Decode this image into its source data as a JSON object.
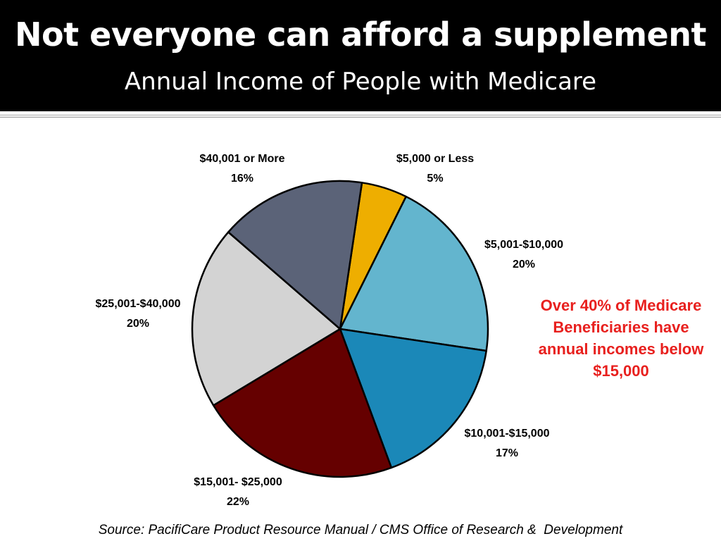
{
  "slide": {
    "title": "Not everyone can afford a supplement",
    "subtitle": "Annual Income of People with Medicare",
    "callout": "Over 40% of Medicare Beneficiaries have annual incomes below $15,000",
    "source": "Source: PacifiCare Product Resource Manual / CMS Office of Research &  Development"
  },
  "chart_data": {
    "type": "pie",
    "title": "Annual Income of People with Medicare",
    "slices": [
      {
        "label": "$5,000 or Less",
        "value": 5,
        "value_label": "5%",
        "color": "#EEAE00"
      },
      {
        "label": "$5,001-$10,000",
        "value": 20,
        "value_label": "20%",
        "color": "#63B5CE"
      },
      {
        "label": "$10,001-$15,000",
        "value": 17,
        "value_label": "17%",
        "color": "#1B88B8"
      },
      {
        "label": "$15,001- $25,000",
        "value": 22,
        "value_label": "22%",
        "color": "#650000"
      },
      {
        "label": "$25,001-$40,000",
        "value": 20,
        "value_label": "20%",
        "color": "#D3D3D3"
      },
      {
        "label": "$40,001 or More",
        "value": 16,
        "value_label": "16%",
        "color": "#5B6378"
      }
    ]
  }
}
